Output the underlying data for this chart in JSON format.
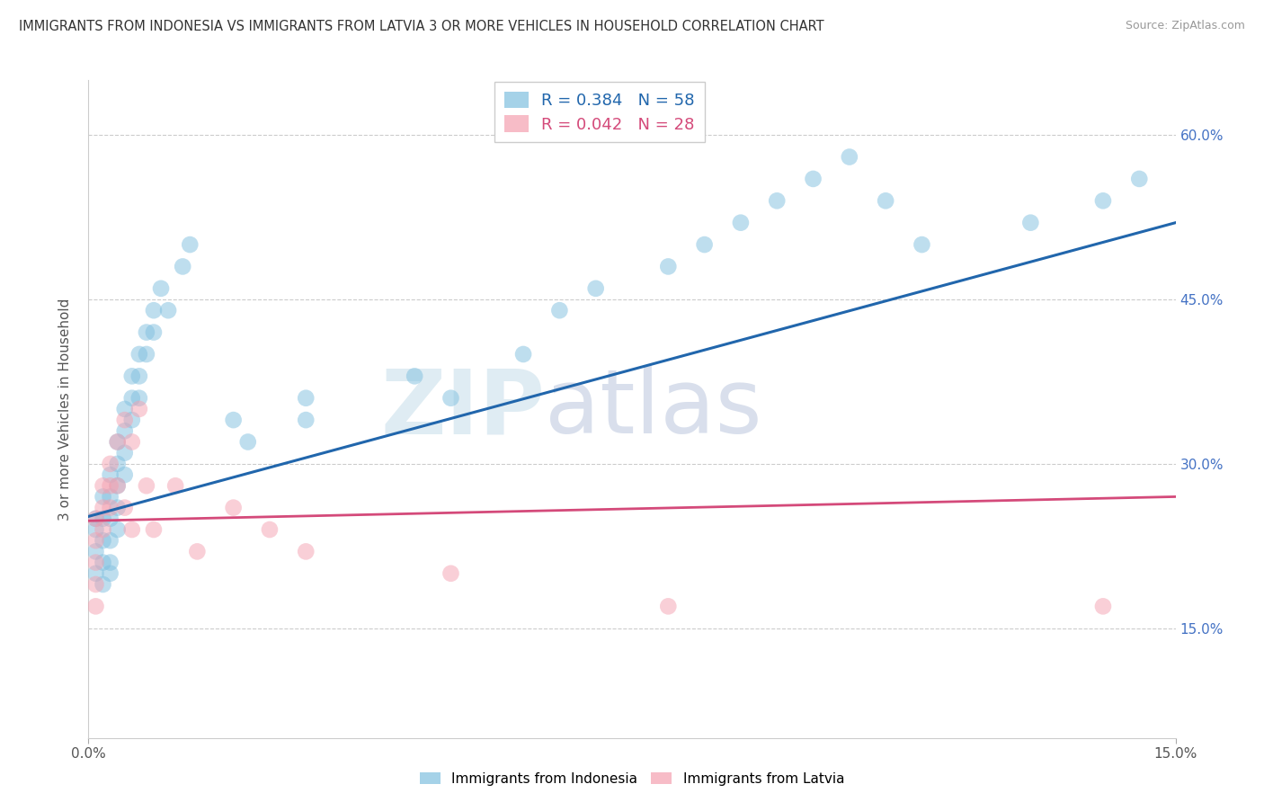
{
  "title": "IMMIGRANTS FROM INDONESIA VS IMMIGRANTS FROM LATVIA 3 OR MORE VEHICLES IN HOUSEHOLD CORRELATION CHART",
  "source": "Source: ZipAtlas.com",
  "ylabel": "3 or more Vehicles in Household",
  "y_ticks": [
    "15.0%",
    "30.0%",
    "45.0%",
    "60.0%"
  ],
  "y_tick_vals": [
    0.15,
    0.3,
    0.45,
    0.6
  ],
  "x_min": 0.0,
  "x_max": 0.15,
  "y_min": 0.05,
  "y_max": 0.65,
  "blue_R": 0.384,
  "blue_N": 58,
  "pink_R": 0.042,
  "pink_N": 28,
  "blue_color": "#7fbfdf",
  "pink_color": "#f4a0b0",
  "blue_line_color": "#2166ac",
  "pink_line_color": "#d44a7a",
  "watermark_zip": "ZIP",
  "watermark_atlas": "atlas",
  "legend_label_blue": "Immigrants from Indonesia",
  "legend_label_pink": "Immigrants from Latvia",
  "blue_x": [
    0.001,
    0.001,
    0.001,
    0.001,
    0.002,
    0.002,
    0.002,
    0.002,
    0.002,
    0.003,
    0.003,
    0.003,
    0.003,
    0.003,
    0.003,
    0.004,
    0.004,
    0.004,
    0.004,
    0.004,
    0.005,
    0.005,
    0.005,
    0.005,
    0.006,
    0.006,
    0.006,
    0.007,
    0.007,
    0.007,
    0.008,
    0.008,
    0.009,
    0.009,
    0.01,
    0.011,
    0.013,
    0.014,
    0.02,
    0.022,
    0.03,
    0.03,
    0.045,
    0.05,
    0.06,
    0.065,
    0.07,
    0.08,
    0.085,
    0.09,
    0.095,
    0.1,
    0.105,
    0.11,
    0.115,
    0.13,
    0.14,
    0.145
  ],
  "blue_y": [
    0.25,
    0.24,
    0.22,
    0.2,
    0.27,
    0.25,
    0.23,
    0.21,
    0.19,
    0.29,
    0.27,
    0.25,
    0.23,
    0.21,
    0.2,
    0.32,
    0.3,
    0.28,
    0.26,
    0.24,
    0.35,
    0.33,
    0.31,
    0.29,
    0.38,
    0.36,
    0.34,
    0.4,
    0.38,
    0.36,
    0.42,
    0.4,
    0.44,
    0.42,
    0.46,
    0.44,
    0.48,
    0.5,
    0.34,
    0.32,
    0.36,
    0.34,
    0.38,
    0.36,
    0.4,
    0.44,
    0.46,
    0.48,
    0.5,
    0.52,
    0.54,
    0.56,
    0.58,
    0.54,
    0.5,
    0.52,
    0.54,
    0.56
  ],
  "pink_x": [
    0.001,
    0.001,
    0.001,
    0.001,
    0.001,
    0.002,
    0.002,
    0.002,
    0.003,
    0.003,
    0.003,
    0.004,
    0.004,
    0.005,
    0.005,
    0.006,
    0.006,
    0.007,
    0.008,
    0.009,
    0.012,
    0.015,
    0.02,
    0.025,
    0.03,
    0.05,
    0.08,
    0.14
  ],
  "pink_y": [
    0.25,
    0.23,
    0.21,
    0.19,
    0.17,
    0.28,
    0.26,
    0.24,
    0.3,
    0.28,
    0.26,
    0.32,
    0.28,
    0.34,
    0.26,
    0.32,
    0.24,
    0.35,
    0.28,
    0.24,
    0.28,
    0.22,
    0.26,
    0.24,
    0.22,
    0.2,
    0.17,
    0.17
  ]
}
